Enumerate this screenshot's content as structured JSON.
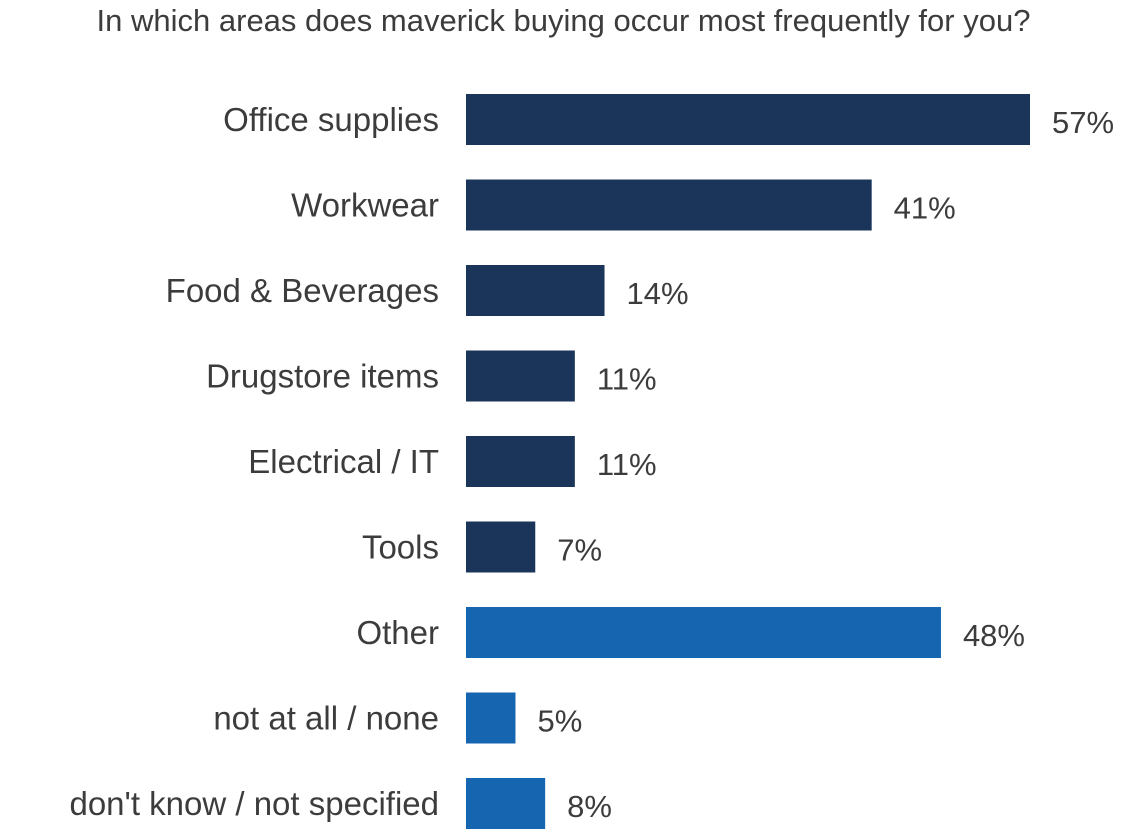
{
  "chart_data": {
    "type": "bar",
    "orientation": "horizontal",
    "title": "In which areas does maverick buying occur most frequently for you?",
    "unit": "%",
    "categories": [
      "Office supplies",
      "Workwear",
      "Food & Beverages",
      "Drugstore items",
      "Electrical / IT",
      "Tools",
      "Other",
      "not at all / none",
      "don't know / not specified"
    ],
    "values": [
      57,
      41,
      14,
      11,
      11,
      7,
      48,
      5,
      8
    ],
    "value_labels": [
      "57%",
      "41%",
      "14%",
      "11%",
      "11%",
      "7%",
      "48%",
      "5%",
      "8%"
    ],
    "colors": [
      "#1a3559",
      "#1a3559",
      "#1a3559",
      "#1a3559",
      "#1a3559",
      "#1a3559",
      "#1565b0",
      "#1565b0",
      "#1565b0"
    ],
    "xlim": [
      0,
      57
    ],
    "grid": false,
    "legend": "none"
  }
}
